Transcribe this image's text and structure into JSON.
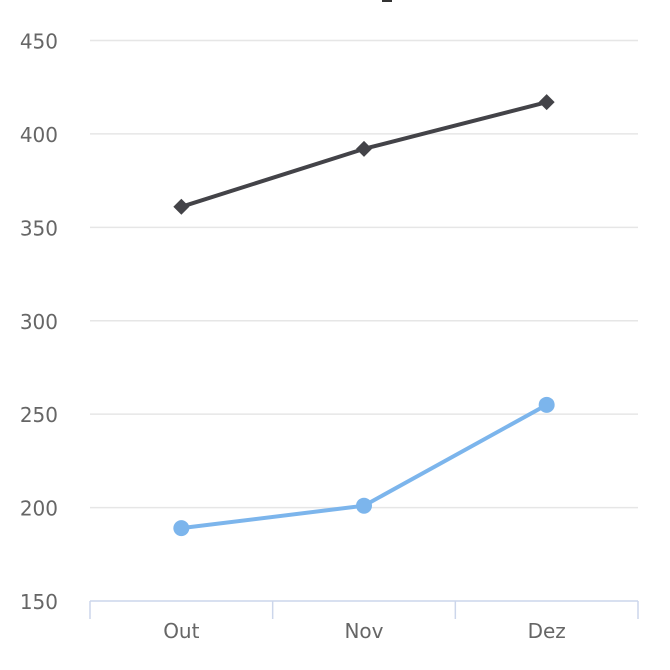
{
  "chart_data": {
    "type": "line",
    "categories": [
      "Out",
      "Nov",
      "Dez"
    ],
    "series": [
      {
        "values": [
          361,
          392,
          417
        ],
        "color": "#434348",
        "marker": "diamond"
      },
      {
        "values": [
          189,
          201,
          255
        ],
        "color": "#7cb5ec",
        "marker": "circle"
      }
    ],
    "ylim": [
      150,
      450
    ],
    "yticks": [
      150,
      200,
      250,
      300,
      350,
      400,
      450
    ],
    "grid": true,
    "legend": "none"
  }
}
